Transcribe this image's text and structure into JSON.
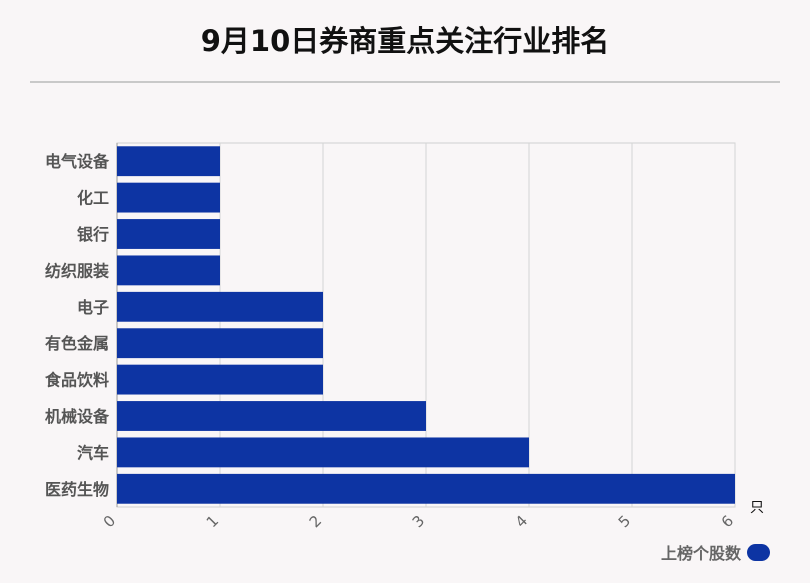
{
  "chart_data": {
    "type": "bar",
    "orientation": "horizontal",
    "title": "9月10日券商重点关注行业排名",
    "categories": [
      "电气设备",
      "化工",
      "银行",
      "纺织服装",
      "电子",
      "有色金属",
      "食品饮料",
      "机械设备",
      "汽车",
      "医药生物"
    ],
    "series": [
      {
        "name": "上榜个股数",
        "values": [
          1,
          1,
          1,
          1,
          2,
          2,
          2,
          3,
          4,
          6
        ]
      }
    ],
    "xlim": [
      0,
      6
    ],
    "x_ticks": [
      0,
      1,
      2,
      3,
      4,
      5,
      6
    ],
    "x_unit": "只",
    "grid": true,
    "legend_position": "bottom-right",
    "bar_color": "#0d34a3"
  }
}
